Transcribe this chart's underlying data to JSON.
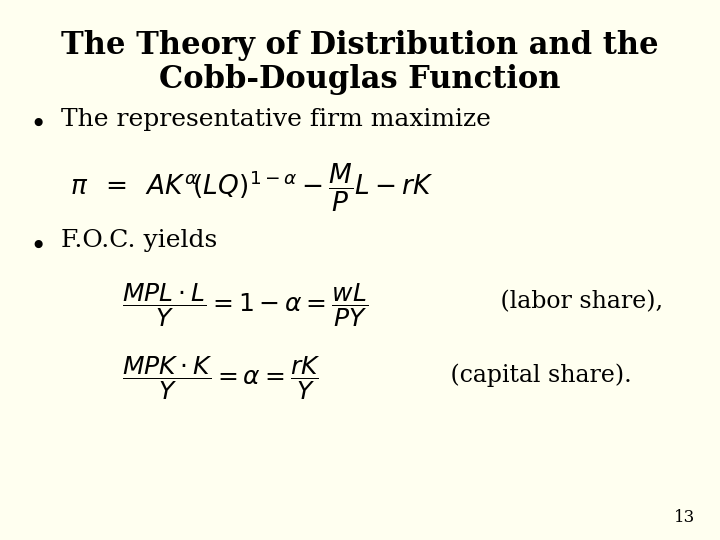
{
  "background_color": "#FFFFF0",
  "title_line1": "The Theory of Distribution and the",
  "title_line2": "Cobb-Douglas Function",
  "title_fontsize": 22,
  "bullet1": "The representative firm maximize",
  "bullet2": "F.O.C. yields",
  "bullet_fontsize": 18,
  "formula2_labor_text": " (labor share),",
  "formula2_capital_text": " (capital share).",
  "formula_fontsize": 16,
  "page_number": "13",
  "text_color": "#000000"
}
